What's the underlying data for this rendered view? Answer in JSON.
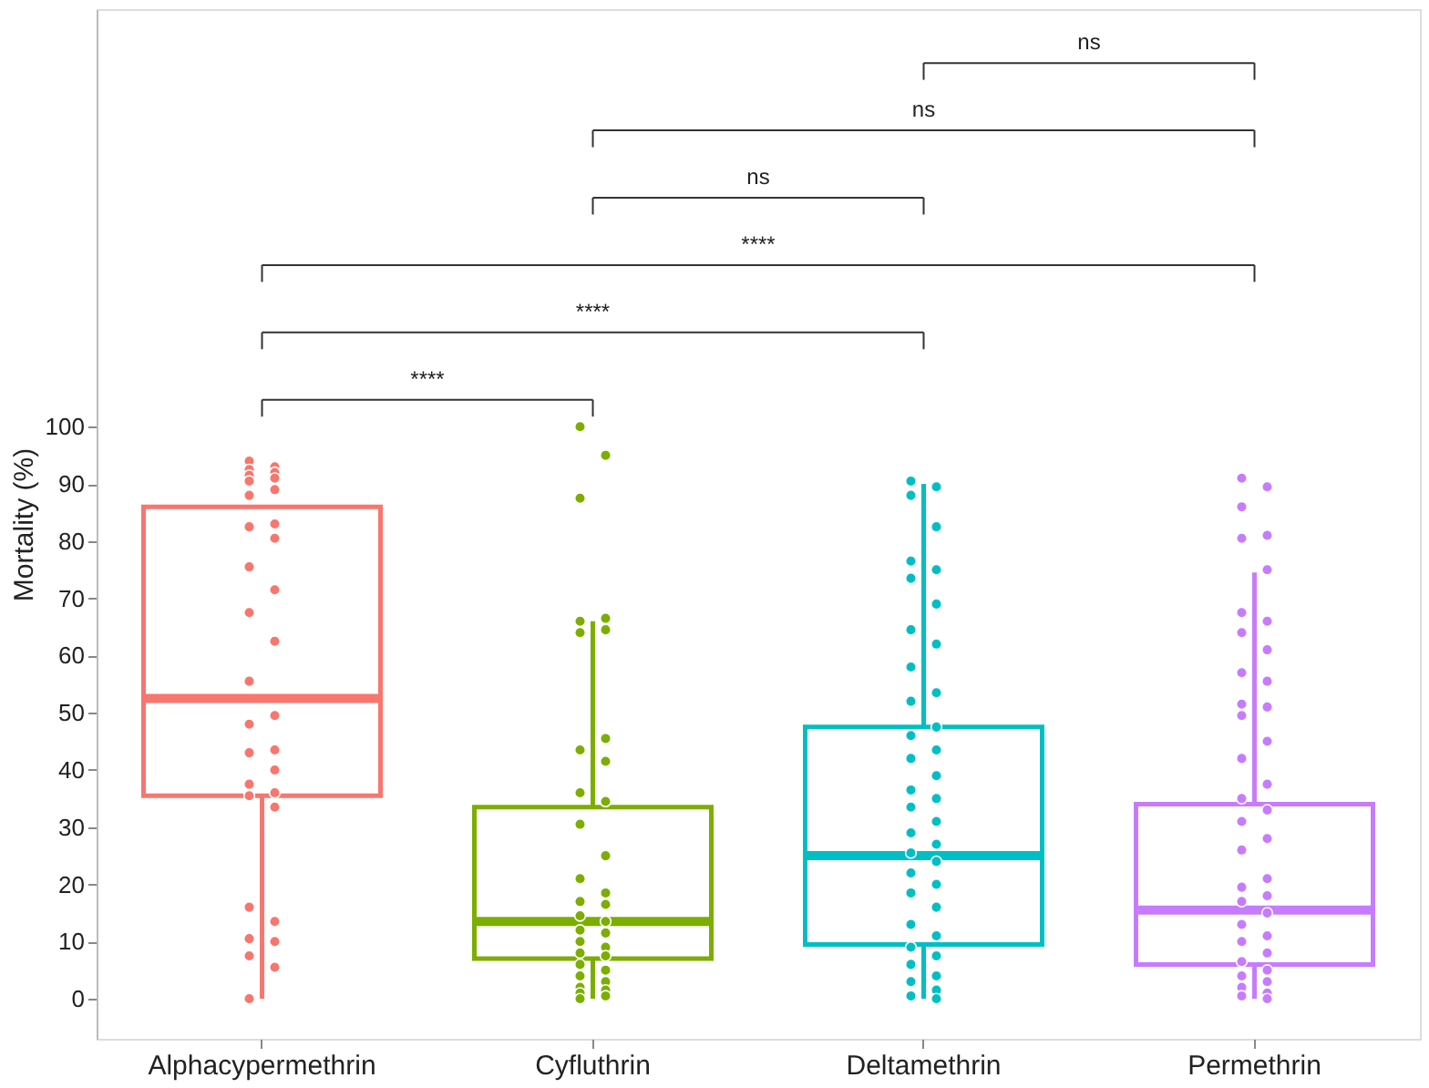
{
  "chart_data": {
    "type": "box",
    "categories": [
      "Alphacypermethrin",
      "Cyfluthrin",
      "Deltamethrin",
      "Permethrin"
    ],
    "colors": [
      "#f8766d",
      "#7cae00",
      "#00bfc4",
      "#c77cff"
    ],
    "boxes": [
      {
        "low": 0,
        "q1": 35.5,
        "median": 52.5,
        "q3": 86,
        "high": 86
      },
      {
        "low": 0,
        "q1": 7,
        "median": 13.5,
        "q3": 33.5,
        "high": 66
      },
      {
        "low": 0,
        "q1": 9.5,
        "median": 25,
        "q3": 47.5,
        "high": 90
      },
      {
        "low": 0,
        "q1": 6,
        "median": 15.5,
        "q3": 34,
        "high": 74.5
      }
    ],
    "series": [
      {
        "type": "scatter",
        "color": "#f8766d",
        "x": [
          "Alphacypermethrin",
          "Alphacypermethrin",
          "Alphacypermethrin",
          "Alphacypermethrin",
          "Alphacypermethrin",
          "Alphacypermethrin",
          "Alphacypermethrin",
          "Alphacypermethrin",
          "Alphacypermethrin",
          "Alphacypermethrin",
          "Alphacypermethrin",
          "Alphacypermethrin",
          "Alphacypermethrin",
          "Alphacypermethrin",
          "Alphacypermethrin",
          "Alphacypermethrin",
          "Alphacypermethrin",
          "Alphacypermethrin",
          "Alphacypermethrin",
          "Alphacypermethrin",
          "Alphacypermethrin",
          "Alphacypermethrin",
          "Alphacypermethrin",
          "Alphacypermethrin",
          "Alphacypermethrin",
          "Alphacypermethrin",
          "Alphacypermethrin",
          "Alphacypermethrin",
          "Alphacypermethrin",
          "Alphacypermethrin",
          "Alphacypermethrin",
          "Alphacypermethrin",
          "Alphacypermethrin"
        ],
        "values": [
          94,
          93,
          92.5,
          92,
          91.5,
          91,
          90.5,
          89,
          88,
          83,
          82.5,
          80.5,
          75.5,
          71.5,
          67.5,
          62.5,
          55.5,
          49.5,
          48,
          43.5,
          43,
          40,
          37.5,
          36,
          35.5,
          33.5,
          16,
          13.5,
          10.5,
          10,
          7.5,
          5.5,
          0
        ]
      },
      {
        "type": "scatter",
        "color": "#7cae00",
        "x": [
          "Cyfluthrin",
          "Cyfluthrin",
          "Cyfluthrin",
          "Cyfluthrin",
          "Cyfluthrin",
          "Cyfluthrin",
          "Cyfluthrin",
          "Cyfluthrin",
          "Cyfluthrin",
          "Cyfluthrin",
          "Cyfluthrin",
          "Cyfluthrin",
          "Cyfluthrin",
          "Cyfluthrin",
          "Cyfluthrin",
          "Cyfluthrin",
          "Cyfluthrin",
          "Cyfluthrin",
          "Cyfluthrin",
          "Cyfluthrin",
          "Cyfluthrin",
          "Cyfluthrin",
          "Cyfluthrin",
          "Cyfluthrin",
          "Cyfluthrin",
          "Cyfluthrin",
          "Cyfluthrin",
          "Cyfluthrin",
          "Cyfluthrin",
          "Cyfluthrin",
          "Cyfluthrin",
          "Cyfluthrin",
          "Cyfluthrin",
          "Cyfluthrin",
          "Cyfluthrin"
        ],
        "values": [
          100,
          95,
          87.5,
          66.5,
          66,
          64.5,
          64,
          45.5,
          43.5,
          41.5,
          36,
          34.5,
          30.5,
          25,
          21,
          18.5,
          17,
          16.5,
          14.5,
          13.5,
          12,
          11.5,
          10,
          9,
          8,
          7.5,
          6,
          5,
          4,
          3,
          2,
          1.5,
          1,
          0.5,
          0
        ]
      },
      {
        "type": "scatter",
        "color": "#00bfc4",
        "x": [
          "Deltamethrin",
          "Deltamethrin",
          "Deltamethrin",
          "Deltamethrin",
          "Deltamethrin",
          "Deltamethrin",
          "Deltamethrin",
          "Deltamethrin",
          "Deltamethrin",
          "Deltamethrin",
          "Deltamethrin",
          "Deltamethrin",
          "Deltamethrin",
          "Deltamethrin",
          "Deltamethrin",
          "Deltamethrin",
          "Deltamethrin",
          "Deltamethrin",
          "Deltamethrin",
          "Deltamethrin",
          "Deltamethrin",
          "Deltamethrin",
          "Deltamethrin",
          "Deltamethrin",
          "Deltamethrin",
          "Deltamethrin",
          "Deltamethrin",
          "Deltamethrin",
          "Deltamethrin",
          "Deltamethrin",
          "Deltamethrin",
          "Deltamethrin",
          "Deltamethrin",
          "Deltamethrin",
          "Deltamethrin",
          "Deltamethrin",
          "Deltamethrin",
          "Deltamethrin",
          "Deltamethrin",
          "Deltamethrin"
        ],
        "values": [
          90.5,
          89.5,
          88,
          82.5,
          76.5,
          75,
          73.5,
          69,
          64.5,
          62,
          58,
          53.5,
          52,
          47.5,
          46,
          43.5,
          42,
          39,
          36.5,
          35,
          33.5,
          31,
          29,
          27,
          25.5,
          24,
          22,
          20,
          18.5,
          16,
          13,
          11,
          9,
          7.5,
          6,
          4,
          3,
          1.5,
          0.5,
          0
        ]
      },
      {
        "type": "scatter",
        "color": "#c77cff",
        "x": [
          "Permethrin",
          "Permethrin",
          "Permethrin",
          "Permethrin",
          "Permethrin",
          "Permethrin",
          "Permethrin",
          "Permethrin",
          "Permethrin",
          "Permethrin",
          "Permethrin",
          "Permethrin",
          "Permethrin",
          "Permethrin",
          "Permethrin",
          "Permethrin",
          "Permethrin",
          "Permethrin",
          "Permethrin",
          "Permethrin",
          "Permethrin",
          "Permethrin",
          "Permethrin",
          "Permethrin",
          "Permethrin",
          "Permethrin",
          "Permethrin",
          "Permethrin",
          "Permethrin",
          "Permethrin",
          "Permethrin",
          "Permethrin",
          "Permethrin",
          "Permethrin",
          "Permethrin",
          "Permethrin",
          "Permethrin",
          "Permethrin",
          "Permethrin",
          "Permethrin"
        ],
        "values": [
          91,
          89.5,
          86,
          81,
          80.5,
          75,
          67.5,
          66,
          64,
          61,
          57,
          55.5,
          51.5,
          51,
          49.5,
          45,
          42,
          37.5,
          35,
          33,
          31,
          28,
          26,
          21,
          19.5,
          18,
          17,
          15,
          13,
          11,
          10,
          8,
          6.5,
          5,
          4,
          3,
          2,
          1,
          0.5,
          0
        ]
      }
    ],
    "ylabel": "Mortality (%)",
    "ylim": [
      -7,
      173
    ],
    "yticks": [
      0,
      10,
      20,
      30,
      40,
      50,
      60,
      70,
      80,
      90,
      100
    ],
    "grid": false,
    "annotations": [
      "****",
      "****",
      "****",
      "ns",
      "ns",
      "ns"
    ]
  }
}
